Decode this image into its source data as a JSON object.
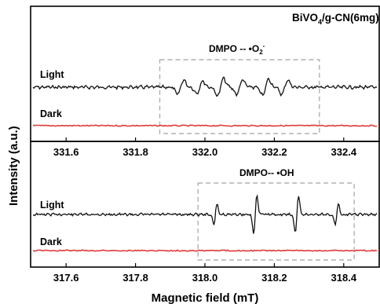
{
  "chart_data": [
    {
      "type": "line",
      "title": "BiVO4/g-CN(6mg)",
      "title_main": "BiVO",
      "title_sub": "4",
      "title_rest": "/g-CN(6mg)",
      "xlabel": "",
      "ylabel": "Intensity (a.u.)",
      "xlim": [
        331.5,
        332.5
      ],
      "x_ticks": [
        "331.6",
        "331.8",
        "332.0",
        "332.2",
        "332.4"
      ],
      "box_label": "DMPO -- •O2-",
      "box_label_main": "DMPO -- •O",
      "box_label_sub": "2",
      "box_label_sup": "-",
      "box_x": [
        331.87,
        332.33
      ],
      "series": [
        {
          "name": "Light",
          "peaks": [
            {
              "x": 331.93,
              "amp": 0.7
            },
            {
              "x": 331.985,
              "amp": 0.6
            },
            {
              "x": 332.045,
              "amp": 0.85
            },
            {
              "x": 332.1,
              "amp": 0.7
            },
            {
              "x": 332.175,
              "amp": 0.8
            },
            {
              "x": 332.23,
              "amp": 0.7
            }
          ]
        },
        {
          "name": "Dark",
          "peaks": []
        }
      ]
    },
    {
      "type": "line",
      "xlabel": "Magnetic field (mT)",
      "xlim": [
        317.5,
        318.5
      ],
      "x_ticks": [
        "317.6",
        "317.8",
        "318.0",
        "318.2",
        "318.4"
      ],
      "box_label": "DMPO-- •OH",
      "box_x": [
        317.98,
        318.43
      ],
      "series": [
        {
          "name": "Light",
          "peaks": [
            {
              "x": 318.03,
              "amp": 0.55
            },
            {
              "x": 318.145,
              "amp": 1.0
            },
            {
              "x": 318.265,
              "amp": 1.0
            },
            {
              "x": 318.38,
              "amp": 0.55
            }
          ]
        },
        {
          "name": "Dark",
          "peaks": []
        }
      ]
    }
  ]
}
